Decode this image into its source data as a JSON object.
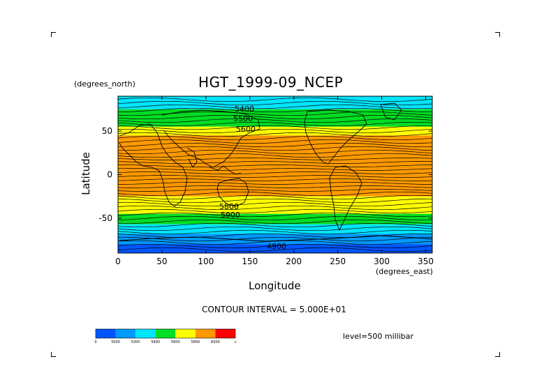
{
  "title": "HGT_1999-09_NCEP",
  "y_units": "(degrees_north)",
  "x_units": "(degrees_east)",
  "x_axis_label": "Longitude",
  "y_axis_label": "Latitude",
  "contour_interval_text": "CONTOUR INTERVAL = 5.000E+01",
  "level_text": "level=500 millibar",
  "x_ticks": [
    "0",
    "50",
    "100",
    "150",
    "200",
    "250",
    "300",
    "350"
  ],
  "y_ticks": [
    "50",
    "0",
    "-50"
  ],
  "contour_labels": [
    "5400",
    "5500",
    "5600",
    "5800",
    "5900",
    "4900"
  ],
  "colorbar": {
    "labels": [
      "0",
      "5000",
      "5200",
      "5400",
      "5600",
      "5800",
      "6000",
      "∞"
    ],
    "colors": [
      "#0055ff",
      "#0099ff",
      "#00e5ff",
      "#00dd22",
      "#ffff00",
      "#ff9900",
      "#ff0000"
    ]
  },
  "chart_data": {
    "type": "heatmap",
    "title": "HGT_1999-09_NCEP",
    "xlabel": "Longitude",
    "ylabel": "Latitude",
    "xlim": [
      0,
      357.5
    ],
    "ylim": [
      -90,
      90
    ],
    "x_ticks": [
      0,
      50,
      100,
      150,
      200,
      250,
      300,
      350
    ],
    "y_ticks": [
      50,
      0,
      -50
    ],
    "contour_interval": 50,
    "level": "500 millibar",
    "color_levels": [
      0,
      5000,
      5200,
      5400,
      5600,
      5800,
      6000
    ],
    "zonal_bands": [
      {
        "lat_from": 90,
        "lat_to": 75,
        "color": "#00e5ff"
      },
      {
        "lat_from": 75,
        "lat_to": 55,
        "color": "#00dd22"
      },
      {
        "lat_from": 55,
        "lat_to": 45,
        "color": "#ffff00"
      },
      {
        "lat_from": 45,
        "lat_to": -25,
        "color": "#ff9900"
      },
      {
        "lat_from": -25,
        "lat_to": -45,
        "color": "#ffff00"
      },
      {
        "lat_from": -45,
        "lat_to": -57,
        "color": "#00dd22"
      },
      {
        "lat_from": -57,
        "lat_to": -68,
        "color": "#00e5ff"
      },
      {
        "lat_from": -68,
        "lat_to": -80,
        "color": "#0099ff"
      },
      {
        "lat_from": -80,
        "lat_to": -90,
        "color": "#0055ff"
      }
    ]
  }
}
